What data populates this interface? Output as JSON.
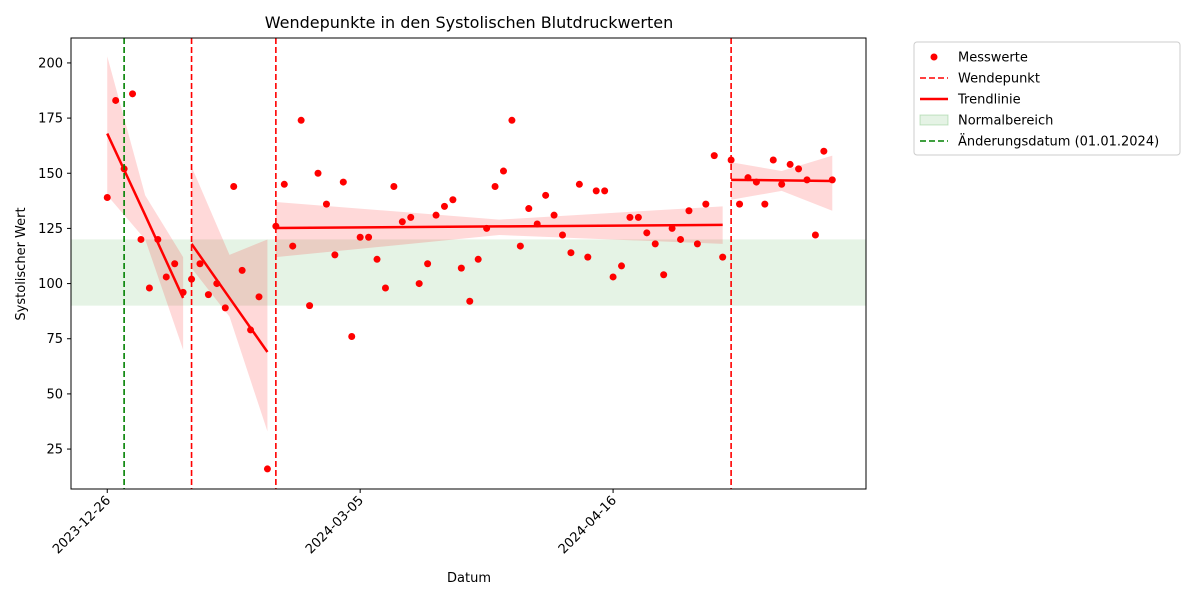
{
  "chart_data": {
    "type": "scatter",
    "title": "Wendepunkte in den Systolischen Blutdruckwerten",
    "x_label": "Datum",
    "y_label": "Systolischer Wert",
    "xlim": [
      -4.3,
      90
    ],
    "ylim": [
      6.9,
      211.3
    ],
    "xticks": [
      {
        "value": 0,
        "label": "2023-12-26"
      },
      {
        "value": 30,
        "label": "2024-03-05"
      },
      {
        "value": 60,
        "label": "2024-04-16"
      }
    ],
    "yticks": [
      25,
      50,
      75,
      100,
      125,
      150,
      175,
      200
    ],
    "x": [
      0,
      1,
      2,
      3,
      4,
      5,
      6,
      7,
      8,
      9,
      10,
      11,
      12,
      13,
      14,
      15,
      16,
      17,
      18,
      19,
      20,
      21,
      22,
      23,
      24,
      25,
      26,
      27,
      28,
      29,
      30,
      31,
      32,
      33,
      34,
      35,
      36,
      37,
      38,
      39,
      40,
      41,
      42,
      43,
      44,
      45,
      46,
      47,
      48,
      49,
      50,
      51,
      52,
      53,
      54,
      55,
      56,
      57,
      58,
      59,
      60,
      61,
      62,
      63,
      64,
      65,
      66,
      67,
      68,
      69,
      70,
      71,
      72,
      73,
      74,
      75,
      76,
      77,
      78,
      79,
      80,
      81,
      82,
      83,
      84,
      85,
      86
    ],
    "series": [
      {
        "name": "Messwerte",
        "color": "#ff0000",
        "values": [
          139,
          183,
          152,
          186,
          120,
          98,
          120,
          103,
          109,
          96,
          102,
          109,
          95,
          100,
          89,
          144,
          106,
          79,
          94,
          16,
          126,
          145,
          117,
          174,
          90,
          150,
          136,
          113,
          146,
          76,
          121,
          121,
          111,
          98,
          144,
          128,
          130,
          100,
          109,
          131,
          135,
          138,
          107,
          92,
          111,
          125,
          144,
          151,
          174,
          117,
          134,
          127,
          140,
          131,
          122,
          114,
          145,
          112,
          142,
          142,
          103,
          108,
          130,
          130,
          123,
          118,
          104,
          125,
          120,
          133,
          118,
          136,
          158,
          112,
          156,
          136,
          148,
          146,
          136,
          156,
          145,
          154,
          152,
          147,
          122,
          160,
          147
        ]
      }
    ],
    "turning_points": {
      "name": "Wendepunkt",
      "color": "#ff0000",
      "x": [
        10,
        20,
        74
      ]
    },
    "trend": {
      "name": "Trendlinie",
      "color": "#ff0000",
      "segments": [
        {
          "x": [
            0,
            4.5,
            9
          ],
          "values": [
            168,
            131,
            93.5
          ],
          "ci_upper": [
            203,
            140,
            112
          ],
          "ci_lower": [
            140,
            120,
            70
          ]
        },
        {
          "x": [
            10,
            14.5,
            19
          ],
          "values": [
            118,
            93.5,
            69
          ],
          "ci_upper": [
            153,
            113,
            120
          ],
          "ci_lower": [
            107,
            85,
            33
          ]
        },
        {
          "x": [
            20,
            46.5,
            73
          ],
          "values": [
            125.2,
            125.9,
            126.6
          ],
          "ci_upper": [
            137,
            129,
            135
          ],
          "ci_lower": [
            112,
            122,
            118
          ]
        },
        {
          "x": [
            74,
            80,
            86
          ],
          "values": [
            147,
            146.8,
            146.5
          ],
          "ci_upper": [
            155,
            151,
            158
          ],
          "ci_lower": [
            138,
            142,
            133
          ]
        }
      ]
    },
    "normal_range": {
      "name": "Normalbereich",
      "color": "#2ca02c",
      "values": [
        90,
        120
      ]
    },
    "change_date": {
      "name": "Änderungsdatum (01.01.2024)",
      "color": "#008000",
      "x": 2
    }
  }
}
